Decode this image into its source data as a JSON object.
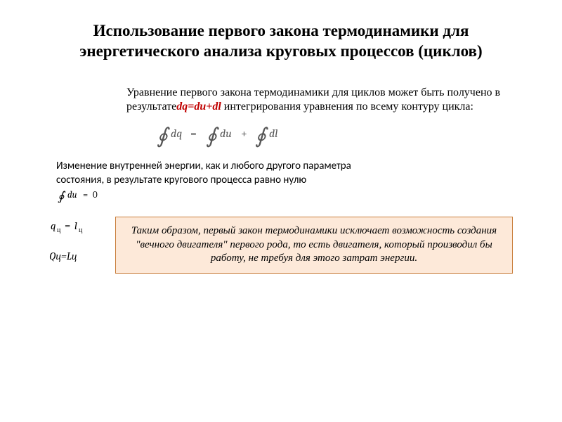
{
  "title": "Использование первого закона термодинамики для энергетического анализа круговых процессов (циклов)",
  "para": {
    "prefix": "Уравнение первого закона термодинамики для циклов может быть получено в результате",
    "red": "dq=du+dl",
    "suffix": "интегрирования уравнения по всему контуру цикла:"
  },
  "eq_main": {
    "int1": "dq",
    "int2": "du",
    "int3": "dl",
    "color": "#555555",
    "fontsize": 16
  },
  "mid": {
    "text": "Изменение внутренней энергии, как и любого другого параметра состояния, в результате кругового процесса равно нулю",
    "eq": "∮ du = 0"
  },
  "left_eqs": {
    "line1_lhs_base": "q",
    "line1_lhs_sub": "ц",
    "line1_rhs_base": "l",
    "line1_rhs_sub": "ц",
    "line2": "Qц=Lц"
  },
  "callout": {
    "text": "Таким образом, первый закон термодинамики исключает возможность создания \"вечного двигателя\" первого рода, то есть двигателя, который производил бы работу, не требуя для этого затрат энергии.",
    "bg_color": "#fde9d9",
    "border_color": "#c97f3d"
  },
  "colors": {
    "text": "#000000",
    "red": "#c00000",
    "background": "#ffffff"
  }
}
